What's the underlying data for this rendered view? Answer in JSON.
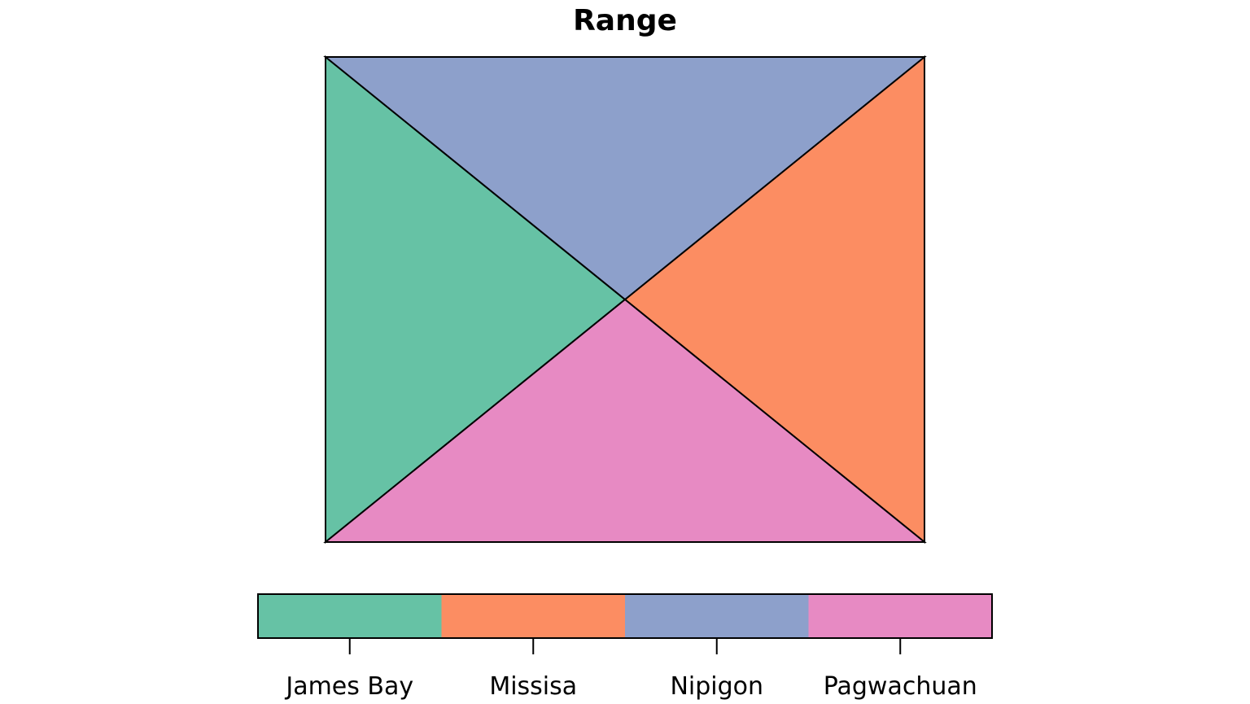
{
  "chart_data": {
    "type": "other",
    "title": "Range",
    "regions": [
      {
        "name": "James Bay",
        "color": "#66c2a5",
        "side": "left"
      },
      {
        "name": "Missisa",
        "color": "#fc8d62",
        "side": "right"
      },
      {
        "name": "Nipigon",
        "color": "#8da0cb",
        "side": "top"
      },
      {
        "name": "Pagwachuan",
        "color": "#e78ac3",
        "side": "bottom"
      }
    ],
    "legend": {
      "type": "color-key",
      "placement": "bottom",
      "categories": [
        "James Bay",
        "Missisa",
        "Nipigon",
        "Pagwachuan"
      ],
      "colors": [
        "#66c2a5",
        "#fc8d62",
        "#8da0cb",
        "#e78ac3"
      ]
    },
    "xlabel": "",
    "ylabel": ""
  }
}
